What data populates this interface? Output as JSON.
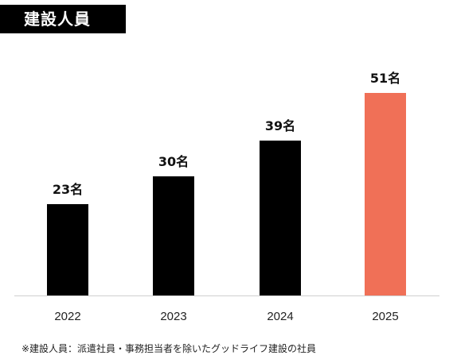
{
  "header": {
    "title": "建設人員"
  },
  "chart_data": {
    "type": "bar",
    "categories": [
      "2022",
      "2023",
      "2024",
      "2025"
    ],
    "values": [
      23,
      30,
      39,
      51
    ],
    "value_labels": [
      "23名",
      "30名",
      "39名",
      "51名"
    ],
    "unit": "名",
    "ylim": [
      0,
      60
    ],
    "grid": false,
    "colors": [
      "#000000",
      "#000000",
      "#000000",
      "#F07057"
    ]
  },
  "footnote": "※建設人員：派遣社員・事務担当者を除いたグッドライフ建設の社員"
}
